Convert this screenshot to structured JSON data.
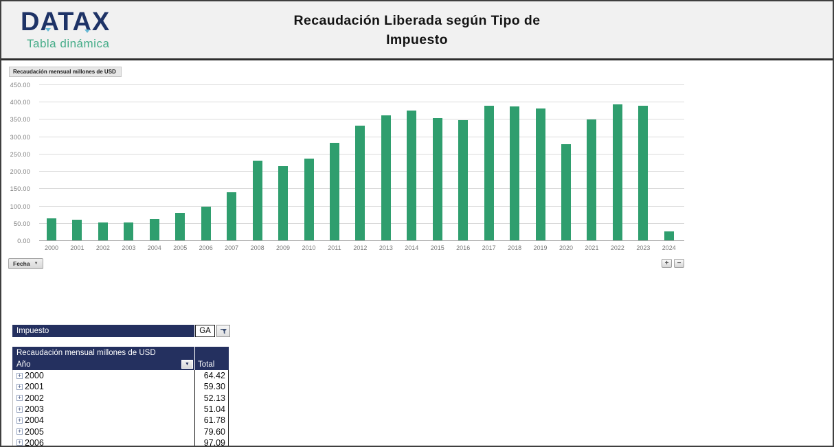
{
  "header": {
    "logo_text": "DATAX",
    "logo_subtitle": "Tabla dinámica",
    "title_line1": "Recaudación Liberada según Tipo de",
    "title_line2": "Impuesto"
  },
  "chart": {
    "field_button_label": "Recaudación mensual millones  de USD",
    "axis_field_button_label": "Fecha",
    "zoom_in_label": "+",
    "zoom_out_label": "−"
  },
  "chart_data": {
    "type": "bar",
    "title": "Recaudación Liberada según Tipo de Impuesto",
    "categories": [
      "2000",
      "2001",
      "2002",
      "2003",
      "2004",
      "2005",
      "2006",
      "2007",
      "2008",
      "2009",
      "2010",
      "2011",
      "2012",
      "2013",
      "2014",
      "2015",
      "2016",
      "2017",
      "2018",
      "2019",
      "2020",
      "2021",
      "2022",
      "2023",
      "2024"
    ],
    "values": [
      64.42,
      59.3,
      52.13,
      51.04,
      61.78,
      79.6,
      97.09,
      139,
      229,
      214,
      235,
      281,
      331,
      360,
      375,
      352,
      346,
      388,
      387,
      381,
      278,
      348,
      392,
      389,
      26
    ],
    "xlabel": "Fecha",
    "ylabel": "",
    "ylim": [
      0,
      450
    ],
    "ytick_step": 50,
    "grid": true,
    "legend": false,
    "bar_color": "#2f9e6e"
  },
  "filter": {
    "label": "Impuesto",
    "value": "GA"
  },
  "pivot": {
    "title": "Recaudación mensual millones de USD",
    "row_header": "Año",
    "value_header": "Total",
    "rows": [
      {
        "year": "2000",
        "total": "64.42"
      },
      {
        "year": "2001",
        "total": "59.30"
      },
      {
        "year": "2002",
        "total": "52.13"
      },
      {
        "year": "2003",
        "total": "51.04"
      },
      {
        "year": "2004",
        "total": "61.78"
      },
      {
        "year": "2005",
        "total": "79.60"
      },
      {
        "year": "2006",
        "total": "97.09"
      }
    ]
  },
  "icons": {
    "dropdown_arrow": "▼",
    "expand_plus": "+",
    "filter_funnel": "funnel"
  },
  "colors": {
    "navy_header": "#24305f",
    "logo_navy": "#1e3366",
    "logo_green": "#45ac88",
    "bar_green": "#2f9e6e",
    "header_band": "#f1f1f1",
    "axis_text": "#7a7a7a",
    "gridline": "#dadada"
  }
}
